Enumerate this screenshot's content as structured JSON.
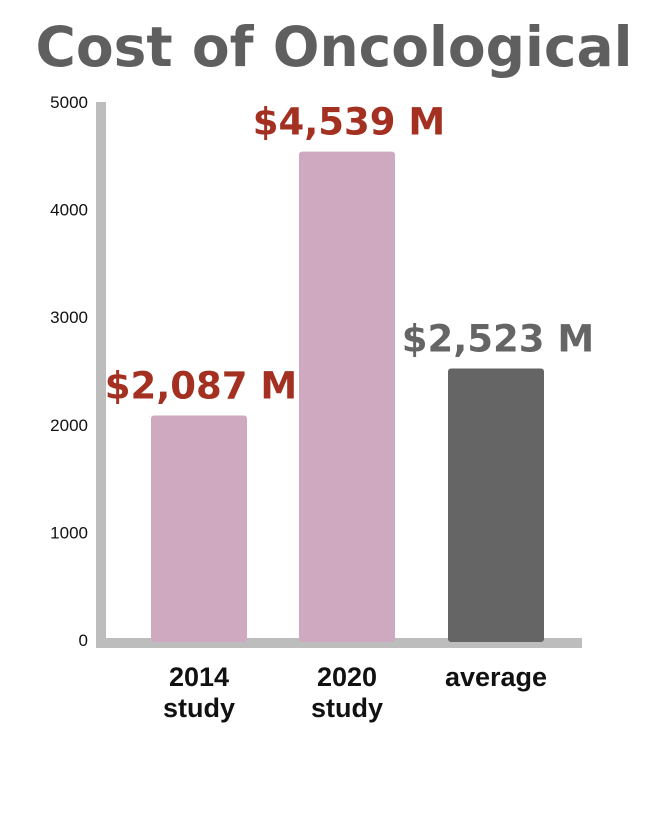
{
  "chart_data": {
    "type": "bar",
    "title": "Cost of Oncological",
    "categories": [
      {
        "line1": "2014",
        "line2": "study"
      },
      {
        "line1": "2020",
        "line2": "study"
      },
      {
        "line1": "average",
        "line2": ""
      }
    ],
    "values": [
      2087,
      4539,
      2523
    ],
    "data_labels": [
      "$2,087 M",
      "$4,539 M",
      "$2,523 M"
    ],
    "bar_colors": [
      "#cfa9bf",
      "#cfa9bf",
      "#656565"
    ],
    "label_colors": [
      "#a33020",
      "#a33020",
      "#656565"
    ],
    "y_ticks": [
      "0",
      "1000",
      "2000",
      "3000",
      "4000",
      "5000"
    ],
    "ylim": [
      0,
      5000
    ],
    "axis_color": "#bdbdbd",
    "grid": false,
    "xlabel": "",
    "ylabel": ""
  }
}
